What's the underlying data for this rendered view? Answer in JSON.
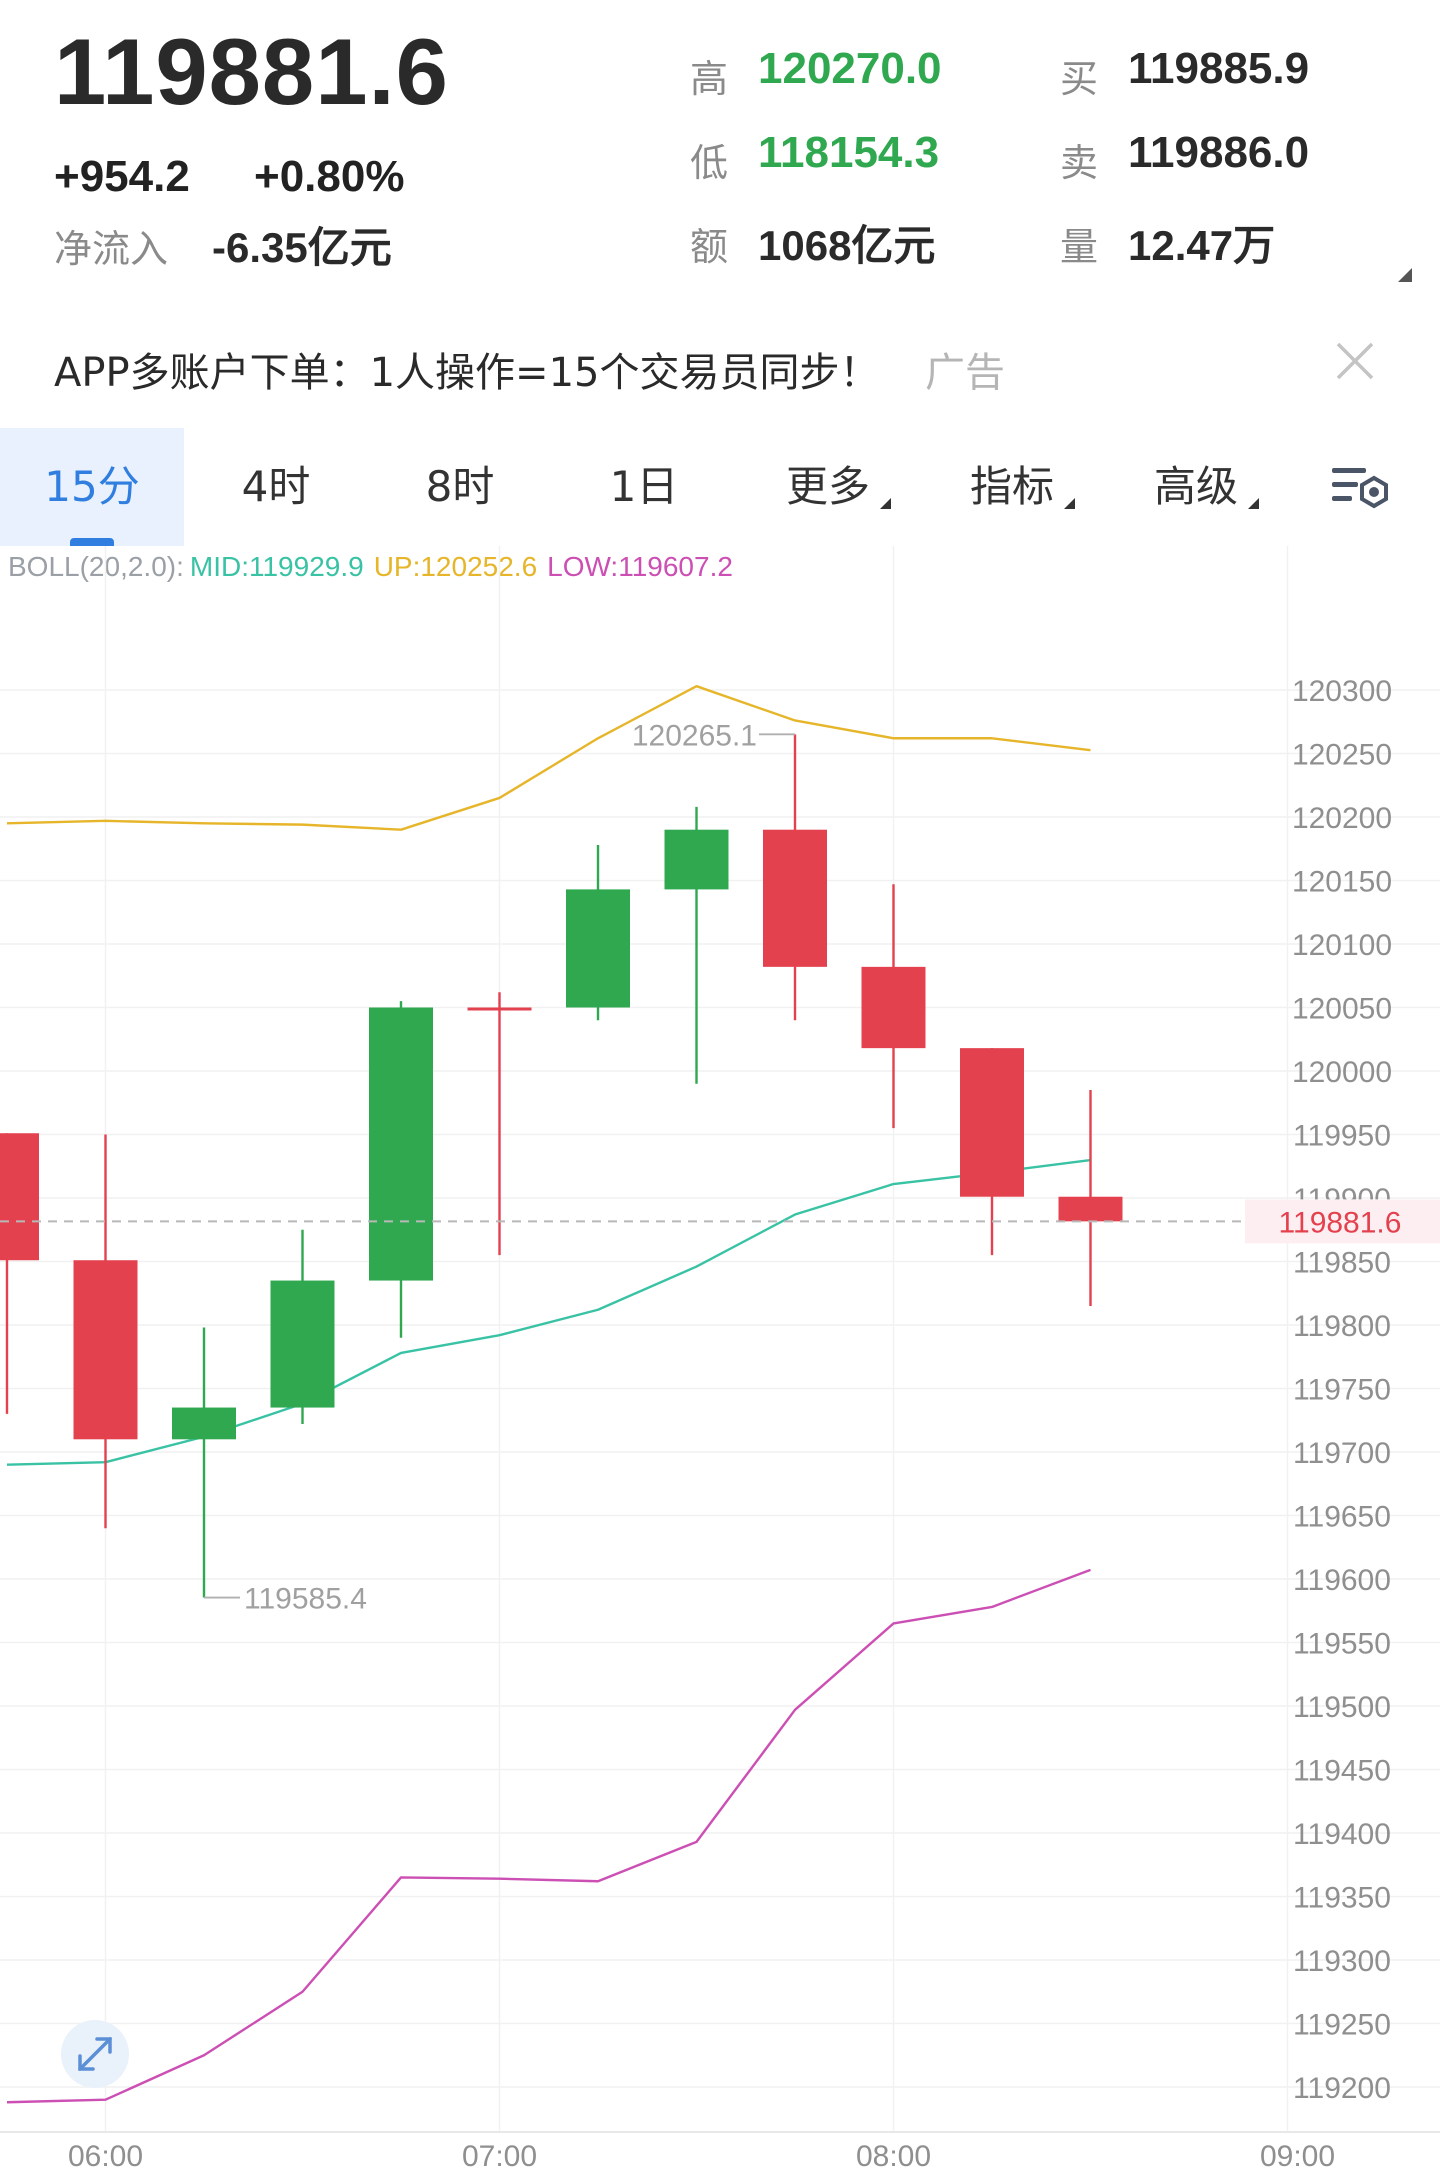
{
  "header": {
    "last_price": "119881.6",
    "change": "+954.2",
    "change_pct": "+0.80%",
    "net_inflow_label": "净流入",
    "net_inflow_value": "-6.35亿元",
    "high_label": "高",
    "high_value": "120270.0",
    "low_label": "低",
    "low_value": "118154.3",
    "amount_label": "额",
    "amount_value": "1068亿元",
    "bid_label": "买",
    "bid_value": "119885.9",
    "ask_label": "卖",
    "ask_value": "119886.0",
    "volume_label": "量",
    "volume_value": "12.47万"
  },
  "ad": {
    "text": "APP多账户下单：1人操作=15个交易员同步！",
    "tag": "广告"
  },
  "tabs": [
    {
      "label": "15分",
      "active": true
    },
    {
      "label": "4时"
    },
    {
      "label": "8时"
    },
    {
      "label": "1日"
    },
    {
      "label": "更多",
      "dropdown": true
    },
    {
      "label": "指标",
      "dropdown": true
    },
    {
      "label": "高级",
      "dropdown": true
    }
  ],
  "colors": {
    "up": "#2fa850",
    "down": "#e4414f",
    "mid": "#39c2a4",
    "upper": "#e6b52a",
    "lower": "#cc4fb4",
    "accent": "#2f7ee0"
  },
  "chart_data": {
    "type": "candlestick",
    "indicator": {
      "name": "BOLL(20,2.0):",
      "mid_label": "MID:119929.9",
      "up_label": "UP:120252.6",
      "low_label": "LOW:119607.2"
    },
    "y_ticks": [
      120300,
      120250,
      120200,
      120150,
      120100,
      120050,
      120000,
      119950,
      119900,
      119850,
      119800,
      119750,
      119700,
      119650,
      119600,
      119550,
      119500,
      119450,
      119400,
      119350,
      119300,
      119250,
      119200
    ],
    "y_tick_labels": [
      "120300",
      "120250",
      "120200",
      "120150",
      "120100",
      "120050",
      "120000",
      "119950",
      "119900",
      "119850",
      "119800",
      "119750",
      "119700",
      "119650",
      "119600",
      "119550",
      "119500",
      "119450",
      "119400",
      "119350",
      "119300",
      "119250",
      "119200"
    ],
    "x_labels": [
      {
        "label": "06:00",
        "slot": 1
      },
      {
        "label": "07:00",
        "slot": 5
      },
      {
        "label": "08:00",
        "slot": 9
      },
      {
        "label": "09:00",
        "slot": 13
      }
    ],
    "ylim": [
      119180,
      120340
    ],
    "current_price": 119881.6,
    "current_price_label": "119881.6",
    "candles": [
      {
        "open": 119951,
        "close": 119851,
        "high": 119951,
        "low": 119730
      },
      {
        "open": 119851,
        "close": 119710,
        "high": 119950,
        "low": 119640
      },
      {
        "open": 119710,
        "close": 119735,
        "high": 119798,
        "low": 119585.4
      },
      {
        "open": 119735,
        "close": 119835,
        "high": 119875,
        "low": 119722
      },
      {
        "open": 119835,
        "close": 120050,
        "high": 120055,
        "low": 119790
      },
      {
        "open": 120050,
        "close": 120050,
        "high": 120062,
        "low": 119855
      },
      {
        "open": 120050,
        "close": 120143,
        "high": 120178,
        "low": 120040
      },
      {
        "open": 120143,
        "close": 120190,
        "high": 120208,
        "low": 119990
      },
      {
        "open": 120190,
        "close": 120082,
        "high": 120265.1,
        "low": 120040
      },
      {
        "open": 120082,
        "close": 120018,
        "high": 120147,
        "low": 119955
      },
      {
        "open": 120018,
        "close": 119901,
        "high": 120018,
        "low": 119855
      },
      {
        "open": 119901,
        "close": 119881.6,
        "high": 119985,
        "low": 119815
      }
    ],
    "high_marker": {
      "value": 120265.1,
      "label": "120265.1"
    },
    "low_marker": {
      "value": 119585.4,
      "label": "119585.4"
    },
    "mid_line": [
      119690,
      119692,
      119712,
      119738,
      119778,
      119792,
      119812,
      119846,
      119887,
      119911,
      119920,
      119929.9
    ],
    "upper_line": [
      120195,
      120197,
      120195,
      120194,
      120190,
      120215,
      120262,
      120303,
      120276,
      120262,
      120262,
      120252.6
    ],
    "lower_line": [
      119188,
      119190,
      119225,
      119275,
      119365,
      119364,
      119362,
      119393,
      119497,
      119565,
      119578,
      119607.2
    ]
  }
}
